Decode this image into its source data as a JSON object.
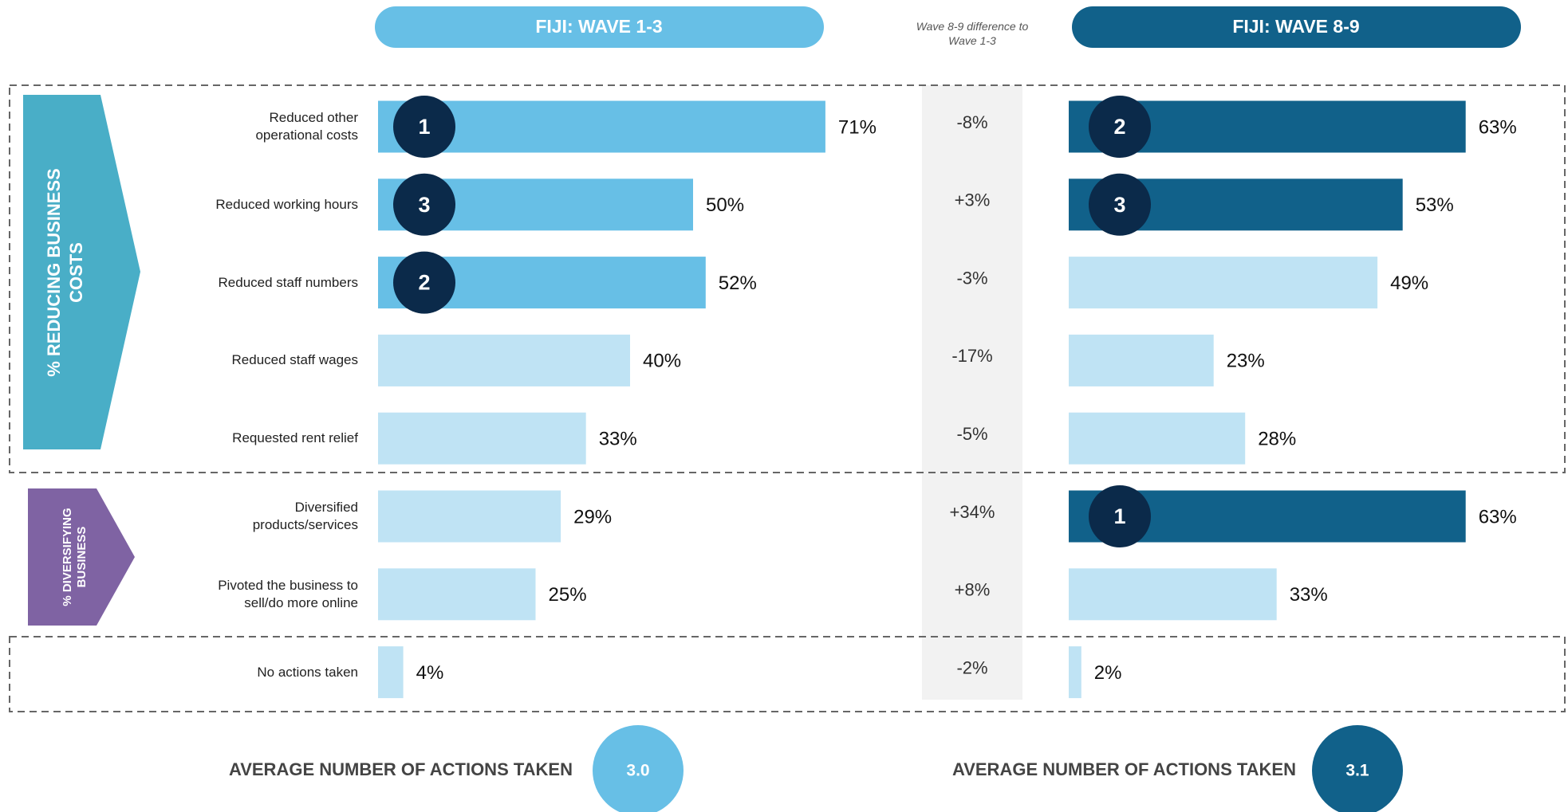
{
  "chart_data": [
    {
      "type": "bar",
      "title": "FIJI: WAVE 1-3",
      "categories": [
        "Reduced other operational costs",
        "Reduced working hours",
        "Reduced staff numbers",
        "Reduced staff wages",
        "Requested rent relief",
        "Diversified products/services",
        "Pivoted the business to sell/do more online",
        "No actions taken"
      ],
      "values": [
        71,
        50,
        52,
        40,
        33,
        29,
        25,
        4
      ],
      "value_labels": [
        "71%",
        "50%",
        "52%",
        "40%",
        "33%",
        "29%",
        "25%",
        "4%"
      ],
      "ranks": [
        1,
        3,
        2,
        null,
        null,
        null,
        null,
        null
      ],
      "color": "#bfe3f4",
      "rank_color": "#67bfe6",
      "xlim": [
        0,
        100
      ],
      "average_label": "AVERAGE NUMBER OF ACTIONS TAKEN",
      "average": {
        "value": 3.0,
        "label": "3.0"
      }
    },
    {
      "type": "bar",
      "title": "FIJI: WAVE 8-9",
      "values": [
        63,
        53,
        49,
        23,
        28,
        63,
        33,
        2
      ],
      "value_labels": [
        "63%",
        "53%",
        "49%",
        "23%",
        "28%",
        "63%",
        "33%",
        "2%"
      ],
      "ranks": [
        2,
        3,
        null,
        null,
        null,
        1,
        null,
        null
      ],
      "color": "#bfe3f4",
      "rank_color": "#11618a",
      "xlim": [
        0,
        100
      ],
      "average_label": "AVERAGE NUMBER OF ACTIONS TAKEN",
      "average": {
        "value": 3.1,
        "label": "3.1"
      }
    }
  ],
  "difference": {
    "title": "Wave 8-9 difference to Wave 1-3",
    "values": [
      -8,
      3,
      -3,
      -17,
      -5,
      34,
      8,
      -2
    ],
    "value_labels": [
      "-8%",
      "+3%",
      "-3%",
      "-17%",
      "-5%",
      "+34%",
      "+8%",
      "-2%"
    ]
  },
  "groups": [
    "% REDUCING BUSINESS COSTS",
    "% DIVERSIFYING BUSINESS"
  ]
}
